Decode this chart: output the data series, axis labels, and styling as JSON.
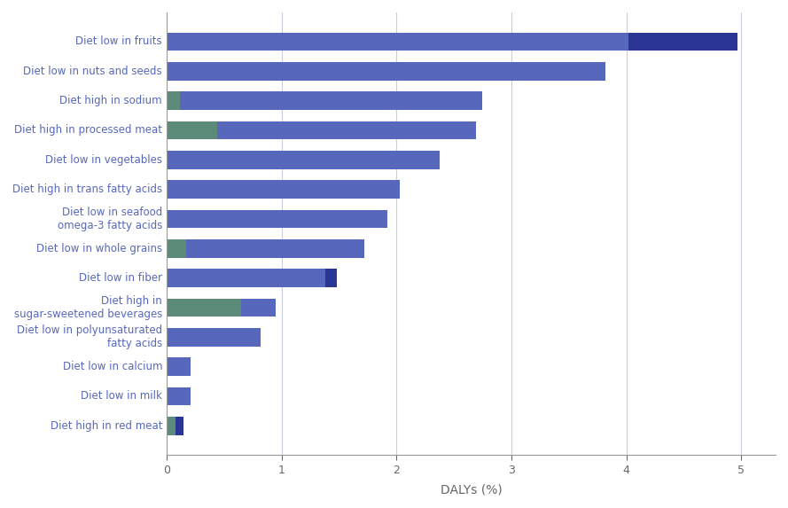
{
  "categories": [
    "Diet high in red meat",
    "Diet low in milk",
    "Diet low in calcium",
    "Diet low in polyunsaturated\nfatty acids",
    "Diet high in\nsugar-sweetened beverages",
    "Diet low in fiber",
    "Diet low in whole grains",
    "Diet low in seafood\nomega-3 fatty acids",
    "Diet high in trans fatty acids",
    "Diet low in vegetables",
    "Diet high in processed meat",
    "Diet high in sodium",
    "Diet low in nuts and seeds",
    "Diet low in fruits"
  ],
  "seg1_green": [
    0.08,
    0.0,
    0.0,
    0.0,
    0.65,
    0.0,
    0.17,
    0.0,
    0.0,
    0.0,
    0.44,
    0.12,
    0.0,
    0.0
  ],
  "seg2_navy_small": [
    0.07,
    0.0,
    0.0,
    0.0,
    0.0,
    0.0,
    0.0,
    0.0,
    0.0,
    0.0,
    0.0,
    0.0,
    0.0,
    0.0
  ],
  "seg3_blue": [
    0.0,
    0.21,
    0.21,
    0.82,
    0.3,
    1.38,
    1.55,
    1.92,
    2.03,
    2.38,
    2.25,
    2.63,
    3.82,
    4.02
  ],
  "seg4_navy": [
    0.0,
    0.0,
    0.0,
    0.0,
    0.0,
    0.1,
    0.0,
    0.0,
    0.0,
    0.0,
    0.0,
    0.0,
    0.0,
    0.95
  ],
  "color_green": "#5C8B79",
  "color_navy_small": "#2B3596",
  "color_blue": "#5768BC",
  "color_navy": "#2B3596",
  "xlabel": "DALYs (%)",
  "xlim": [
    0,
    5.3
  ],
  "xticks": [
    0,
    1,
    2,
    3,
    4,
    5
  ],
  "tick_label_color": "#666666",
  "ylabel_color": "#5768BC",
  "grid_color": "#c8cede",
  "figsize": [
    8.89,
    5.73
  ],
  "dpi": 100
}
